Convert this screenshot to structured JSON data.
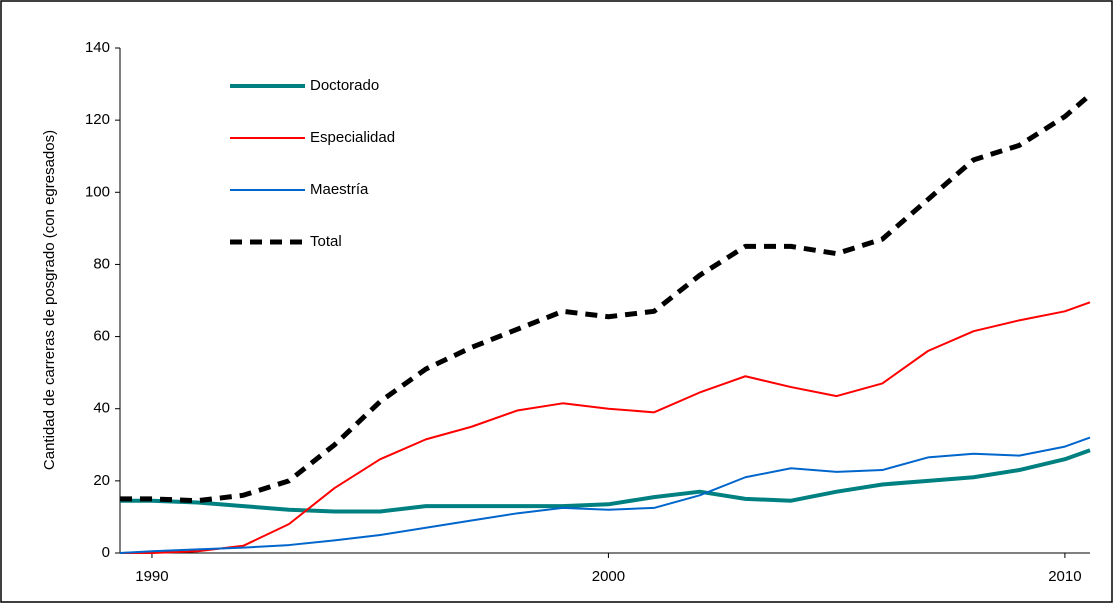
{
  "chart_data": {
    "type": "line",
    "y_label": "Cantidad de carreras de posgrado (con egresados)",
    "x": [
      1989.3,
      1990,
      1991,
      1992,
      1993,
      1994,
      1995,
      1996,
      1997,
      1998,
      1999,
      2000,
      2001,
      2002,
      2003,
      2004,
      2005,
      2006,
      2007,
      2008,
      2009,
      2010,
      2010.55
    ],
    "xlim": [
      1989.3,
      2010.55
    ],
    "xticks": [
      1990,
      2000,
      2010
    ],
    "ylim": [
      0,
      140
    ],
    "yticks": [
      0,
      20,
      40,
      60,
      80,
      100,
      120,
      140
    ],
    "series": [
      {
        "name": "Doctorado",
        "color": "#008080",
        "width": 4,
        "dash": false,
        "values": [
          14.5,
          14.5,
          14,
          13,
          12,
          11.5,
          11.5,
          13,
          13,
          13,
          13,
          13.5,
          15.5,
          17,
          15,
          14.5,
          17,
          19,
          20,
          21,
          23,
          26,
          28.5
        ]
      },
      {
        "name": "Especialidad",
        "color": "#ff0000",
        "width": 2,
        "dash": false,
        "values": [
          0,
          0,
          0.5,
          2,
          8,
          18,
          26,
          31.5,
          35,
          39.5,
          41.5,
          40,
          39,
          44.5,
          49,
          46,
          43.5,
          47,
          56,
          61.5,
          64.5,
          67,
          69.5
        ]
      },
      {
        "name": "Maestría",
        "color": "#0066cc",
        "width": 2,
        "dash": false,
        "values": [
          0,
          0.5,
          1,
          1.5,
          2.2,
          3.5,
          5,
          7,
          9,
          11,
          12.5,
          12,
          12.5,
          16,
          21,
          23.5,
          22.5,
          23,
          26.5,
          27.5,
          27,
          29.5,
          32
        ]
      },
      {
        "name": "Total",
        "color": "#000000",
        "width": 5,
        "dash": true,
        "values": [
          15,
          15,
          14.5,
          16,
          20,
          30,
          42,
          51,
          57,
          62,
          67,
          65.5,
          67,
          77,
          85,
          85,
          83,
          87,
          98,
          109,
          113,
          121,
          127
        ]
      }
    ]
  }
}
